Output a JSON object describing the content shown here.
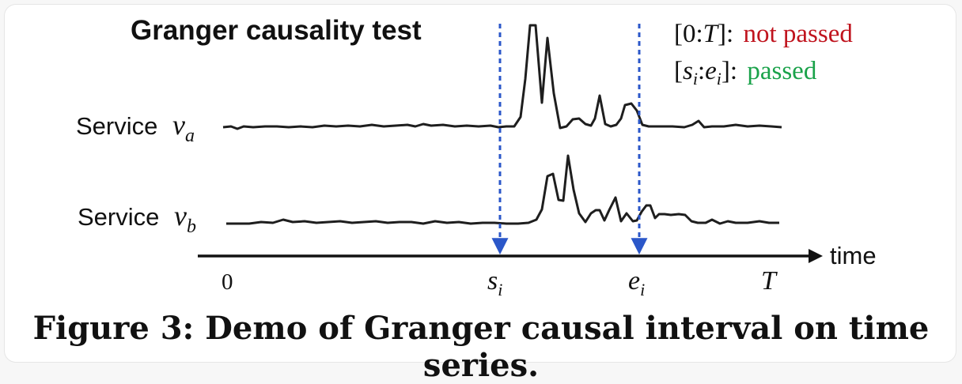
{
  "title": "Granger causality test",
  "legend": {
    "full_interval": {
      "open": "[0:",
      "var": "T",
      "close": "]:",
      "status": "not passed",
      "color": "#c0141e"
    },
    "sub_interval": {
      "open": "[",
      "s": "s",
      "s_sub": "i",
      "colon": ":",
      "e": "e",
      "e_sub": "i",
      "close": "]:",
      "status": "passed",
      "color": "#1aa24a"
    }
  },
  "series": [
    {
      "label": "Service",
      "var": "v",
      "sub": "a"
    },
    {
      "label": "Service",
      "var": "v",
      "sub": "b"
    }
  ],
  "axis": {
    "label": "time",
    "ticks": {
      "zero": "0",
      "start": "s",
      "start_sub": "i",
      "end": "e",
      "end_sub": "i",
      "T": "T"
    }
  },
  "marker_color": "#2b57c9",
  "caption": "Figure 3:  Demo of Granger causal interval on time series."
}
